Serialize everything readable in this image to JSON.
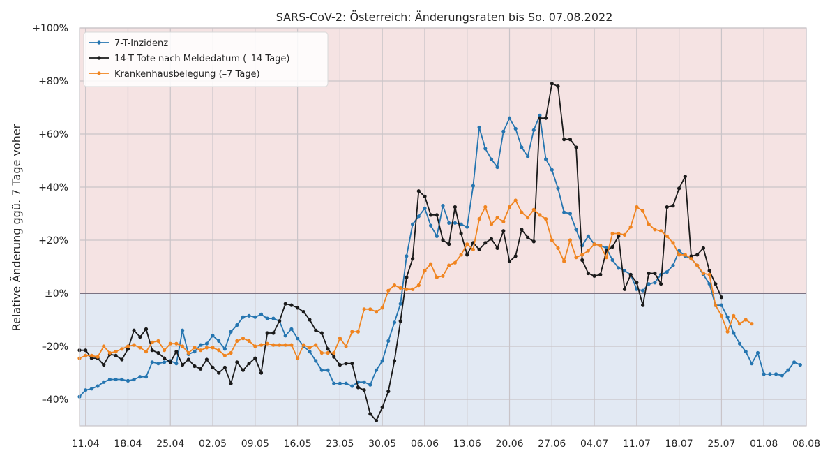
{
  "chart_data": {
    "type": "line",
    "title": "SARS-CoV-2: Österreich: Änderungsraten bis So. 07.08.2022",
    "ylabel": "Relative Änderung ggü. 7 Tage voher",
    "xlabel": "",
    "x_start": "2022-04-10",
    "x_end": "2022-08-08",
    "ylim": [
      -50,
      100
    ],
    "y_ticks": [
      {
        "v": 100,
        "label": "+100%"
      },
      {
        "v": 80,
        "label": "+80%"
      },
      {
        "v": 60,
        "label": "+60%"
      },
      {
        "v": 40,
        "label": "+40%"
      },
      {
        "v": 20,
        "label": "+20%"
      },
      {
        "v": 0,
        "label": "±0%"
      },
      {
        "v": -20,
        "label": "–20%"
      },
      {
        "v": -40,
        "label": "–40%"
      }
    ],
    "x_ticks": [
      {
        "date": "2022-04-11",
        "label": "11.04"
      },
      {
        "date": "2022-04-18",
        "label": "18.04"
      },
      {
        "date": "2022-04-25",
        "label": "25.04"
      },
      {
        "date": "2022-05-02",
        "label": "02.05"
      },
      {
        "date": "2022-05-09",
        "label": "09.05"
      },
      {
        "date": "2022-05-16",
        "label": "16.05"
      },
      {
        "date": "2022-05-23",
        "label": "23.05"
      },
      {
        "date": "2022-05-30",
        "label": "30.05"
      },
      {
        "date": "2022-06-06",
        "label": "06.06"
      },
      {
        "date": "2022-06-13",
        "label": "13.06"
      },
      {
        "date": "2022-06-20",
        "label": "20.06"
      },
      {
        "date": "2022-06-27",
        "label": "27.06"
      },
      {
        "date": "2022-07-04",
        "label": "04.07"
      },
      {
        "date": "2022-07-11",
        "label": "11.07"
      },
      {
        "date": "2022-07-18",
        "label": "18.07"
      },
      {
        "date": "2022-07-25",
        "label": "25.07"
      },
      {
        "date": "2022-08-01",
        "label": "01.08"
      },
      {
        "date": "2022-08-08",
        "label": "08.08"
      }
    ],
    "grid": true,
    "legend_position": "top-left",
    "background_positive": "#f5e3e3",
    "background_negative": "#e2e9f3",
    "series": [
      {
        "name": "7-T-Inzidenz",
        "color": "#2575b0",
        "start": "2022-04-10",
        "values": [
          -39,
          -36.5,
          -36,
          -35,
          -33.5,
          -32.5,
          -32.5,
          -32.5,
          -33,
          -32.5,
          -31.5,
          -31.5,
          -26,
          -26.5,
          -26,
          -25.5,
          -26.5,
          -14,
          -23,
          -22,
          -19.5,
          -19,
          -16,
          -18,
          -21,
          -14.5,
          -12,
          -9,
          -8.5,
          -9,
          -8,
          -9.5,
          -9.5,
          -10.5,
          -16,
          -13.5,
          -17,
          -20,
          -22,
          -25.5,
          -29,
          -29,
          -34,
          -34,
          -34,
          -35,
          -33.5,
          -33.5,
          -34.5,
          -29,
          -25.5,
          -18,
          -11,
          -4,
          14,
          26,
          29,
          32,
          25.5,
          21.5,
          33,
          26.5,
          26.5,
          26,
          25,
          40.5,
          62.5,
          54.5,
          50.5,
          47.5,
          61,
          66,
          62,
          55,
          51.5,
          61.5,
          67,
          50.5,
          46.5,
          39.5,
          30.5,
          30,
          24,
          18,
          21.5,
          18.5,
          18,
          17,
          12.5,
          9.5,
          8.5,
          7,
          1.5,
          1,
          3.5,
          4,
          7,
          8,
          10.5,
          16,
          14,
          13,
          10.5,
          7,
          3.5,
          -4.5,
          -4.5,
          -9,
          -15,
          -19,
          -22,
          -26.5,
          -22.5,
          -30.5,
          -30.5,
          -30.5,
          -31,
          -29,
          -26,
          -27
        ]
      },
      {
        "name": "14-T Tote nach Meldedatum (–14 Tage)",
        "color": "#1a1a1a",
        "start": "2022-04-10",
        "values": [
          -21.5,
          -21.5,
          -24.5,
          -24.5,
          -27,
          -23,
          -23.5,
          -25,
          -21,
          -14,
          -16.5,
          -13.5,
          -21.5,
          -22.5,
          -24.5,
          -26,
          -22,
          -27,
          -25,
          -27.5,
          -28.5,
          -25,
          -28,
          -30,
          -28,
          -34,
          -26,
          -29,
          -26.5,
          -24.5,
          -30,
          -15,
          -15,
          -10.5,
          -4,
          -4.5,
          -5.5,
          -7,
          -10,
          -14,
          -15,
          -21,
          -24,
          -27,
          -26.5,
          -26.5,
          -35.5,
          -36.5,
          -45.5,
          -48,
          -43,
          -37,
          -25.5,
          -10.5,
          6,
          13,
          38.5,
          36.5,
          29.5,
          29.5,
          20,
          18.5,
          32.5,
          22.5,
          14.5,
          19,
          16.5,
          19,
          20.5,
          17,
          23.5,
          12,
          14,
          24,
          21,
          19.5,
          66,
          66,
          79,
          78,
          58,
          58,
          55,
          12.5,
          7.5,
          6.5,
          7,
          16,
          17.5,
          21.5,
          1.5,
          7,
          4,
          -4.5,
          7.5,
          7.5,
          3.5,
          32.5,
          33,
          39.5,
          44,
          14,
          14.5,
          17,
          8.5,
          3.5,
          -1.5
        ]
      },
      {
        "name": "Krankenhausbelegung (–7 Tage)",
        "color": "#f0841f",
        "start": "2022-04-10",
        "values": [
          -24.5,
          -23.5,
          -23.5,
          -24,
          -20,
          -22.5,
          -22,
          -21,
          -20,
          -19.5,
          -20.5,
          -22,
          -18.5,
          -18,
          -21.5,
          -19,
          -19,
          -20,
          -22.5,
          -20.5,
          -21.5,
          -20.5,
          -20.5,
          -21.5,
          -23.5,
          -22.5,
          -18,
          -17,
          -18,
          -20,
          -19.5,
          -19,
          -19.5,
          -19.5,
          -19.5,
          -19.5,
          -24.5,
          -19.5,
          -20.5,
          -19.5,
          -22.5,
          -22.5,
          -22.5,
          -17,
          -20,
          -14.5,
          -14.5,
          -6,
          -6,
          -7,
          -5.5,
          1,
          3,
          2,
          1.5,
          1.5,
          3,
          8.5,
          11,
          6,
          6.5,
          10.5,
          11.5,
          14.5,
          18.5,
          16.5,
          28,
          32.5,
          26,
          28.5,
          27,
          32.5,
          35,
          30.5,
          28.5,
          31.5,
          29.5,
          28,
          20,
          17,
          12,
          20,
          13.5,
          14.5,
          16,
          18.5,
          18,
          13.5,
          22.5,
          22.5,
          22,
          25,
          32.5,
          31,
          26,
          24,
          23.5,
          21.5,
          19,
          14.5,
          14.5,
          13,
          10.5,
          7.5,
          7,
          -4.5,
          -8.5,
          -14.5,
          -8.5,
          -11.5,
          -10,
          -11.5
        ]
      }
    ]
  }
}
